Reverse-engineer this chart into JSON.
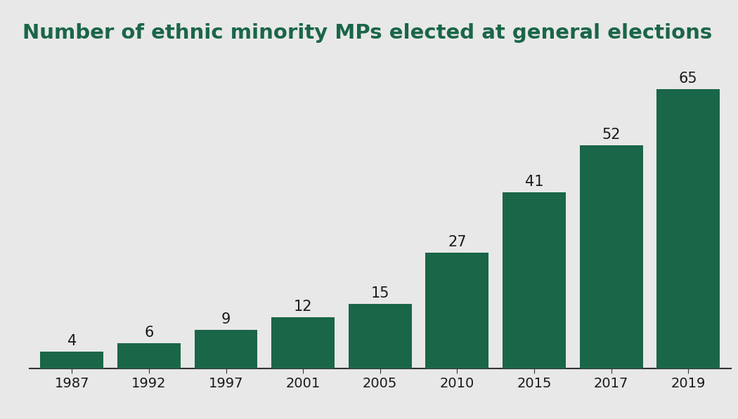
{
  "title": "Number of ethnic minority MPs elected at general elections",
  "categories": [
    "1987",
    "1992",
    "1997",
    "2001",
    "2005",
    "2010",
    "2015",
    "2017",
    "2019"
  ],
  "values": [
    4,
    6,
    9,
    12,
    15,
    27,
    41,
    52,
    65
  ],
  "bar_color": "#1a6648",
  "background_color": "#e8e8e8",
  "title_fontsize": 21,
  "label_fontsize": 15,
  "tick_fontsize": 14,
  "title_color": "#1a6648",
  "label_color": "#1a1a1a",
  "tick_color": "#1a1a1a",
  "ylim": [
    0,
    74
  ],
  "bar_width": 0.82
}
